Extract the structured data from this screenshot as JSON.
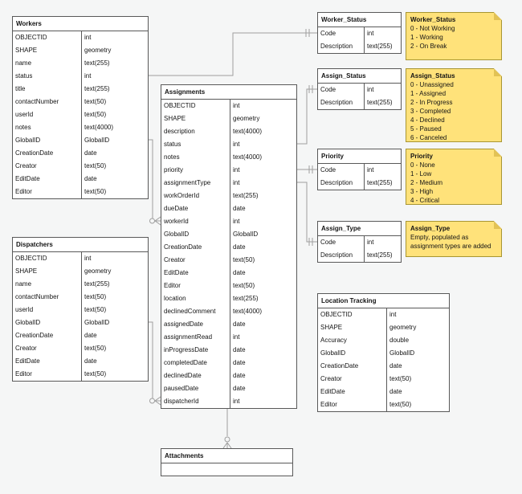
{
  "diagram": {
    "background_color": "#f5f6f6",
    "table_fill_color": "#ffffff",
    "table_border_color": "#595959",
    "connector_color": "#9e9e9e",
    "note_fill_color": "#ffe27a",
    "note_border_color": "#a89632",
    "note_fold_color": "#e2c255",
    "text_color": "#141414"
  },
  "tables": [
    {
      "id": "workers",
      "title": "Workers",
      "rows": [
        [
          "OBJECTID",
          "int"
        ],
        [
          "SHAPE",
          "geometry"
        ],
        [
          "name",
          "text(255)"
        ],
        [
          "status",
          "int"
        ],
        [
          "title",
          "text(255)"
        ],
        [
          "contactNumber",
          "text(50)"
        ],
        [
          "userId",
          "text(50)"
        ],
        [
          "notes",
          "text(4000)"
        ],
        [
          "GlobalID",
          "GlobalID"
        ],
        [
          "CreationDate",
          "date"
        ],
        [
          "Creator",
          "text(50)"
        ],
        [
          "EditDate",
          "date"
        ],
        [
          "Editor",
          "text(50)"
        ]
      ]
    },
    {
      "id": "dispatchers",
      "title": "Dispatchers",
      "rows": [
        [
          "OBJECTID",
          "int"
        ],
        [
          "SHAPE",
          "geometry"
        ],
        [
          "name",
          "text(255)"
        ],
        [
          "contactNumber",
          "text(50)"
        ],
        [
          "userId",
          "text(50)"
        ],
        [
          "GlobalID",
          "GlobalID"
        ],
        [
          "CreationDate",
          "date"
        ],
        [
          "Creator",
          "text(50)"
        ],
        [
          "EditDate",
          "date"
        ],
        [
          "Editor",
          "text(50)"
        ]
      ]
    },
    {
      "id": "assignments",
      "title": "Assignments",
      "rows": [
        [
          "OBJECTID",
          "int"
        ],
        [
          "SHAPE",
          "geometry"
        ],
        [
          "description",
          "text(4000)"
        ],
        [
          "status",
          "int"
        ],
        [
          "notes",
          "text(4000)"
        ],
        [
          "priority",
          "int"
        ],
        [
          "assignmentType",
          "int"
        ],
        [
          "workOrderId",
          "text(255)"
        ],
        [
          "dueDate",
          "date"
        ],
        [
          "workerId",
          "int"
        ],
        [
          "GlobalID",
          "GlobalID"
        ],
        [
          "CreationDate",
          "date"
        ],
        [
          "Creator",
          "text(50)"
        ],
        [
          "EditDate",
          "date"
        ],
        [
          "Editor",
          "text(50)"
        ],
        [
          "location",
          "text(255)"
        ],
        [
          "declinedComment",
          "text(4000)"
        ],
        [
          "assignedDate",
          "date"
        ],
        [
          "assignmentRead",
          "int"
        ],
        [
          "inProgressDate",
          "date"
        ],
        [
          "completedDate",
          "date"
        ],
        [
          "declinedDate",
          "date"
        ],
        [
          "pausedDate",
          "date"
        ],
        [
          "dispatcherId",
          "int"
        ]
      ]
    },
    {
      "id": "worker-status",
      "title": "Worker_Status",
      "rows": [
        [
          "Code",
          "int"
        ],
        [
          "Description",
          "text(255)"
        ]
      ]
    },
    {
      "id": "assign-status",
      "title": "Assign_Status",
      "rows": [
        [
          "Code",
          "int"
        ],
        [
          "Description",
          "text(255)"
        ]
      ]
    },
    {
      "id": "priority",
      "title": "Priority",
      "rows": [
        [
          "Code",
          "int"
        ],
        [
          "Description",
          "text(255)"
        ]
      ]
    },
    {
      "id": "assign-type",
      "title": "Assign_Type",
      "rows": [
        [
          "Code",
          "int"
        ],
        [
          "Description",
          "text(255)"
        ]
      ]
    },
    {
      "id": "location-tracking",
      "title": "Location Tracking",
      "rows": [
        [
          "OBJECTID",
          "int"
        ],
        [
          "SHAPE",
          "geometry"
        ],
        [
          "Accuracy",
          "double"
        ],
        [
          "GlobalID",
          "GlobalID"
        ],
        [
          "CreationDate",
          "date"
        ],
        [
          "Creator",
          "text(50)"
        ],
        [
          "EditDate",
          "date"
        ],
        [
          "Editor",
          "text(50)"
        ]
      ]
    },
    {
      "id": "attachments",
      "title": "Attachments",
      "rows": []
    }
  ],
  "notes": [
    {
      "id": "worker-status-note",
      "title": "Worker_Status",
      "lines": [
        "0 - Not Working",
        "1 - Working",
        "2 - On Break"
      ]
    },
    {
      "id": "assign-status-note",
      "title": "Assign_Status",
      "lines": [
        "0 - Unassigned",
        "1 - Assigned",
        "2 - In Progress",
        "3 - Completed",
        "4 - Declined",
        "5 - Paused",
        "6 - Canceled"
      ]
    },
    {
      "id": "priority-note",
      "title": "Priority",
      "lines": [
        "0 - None",
        "1 - Low",
        "2 - Medium",
        "3 - High",
        "4 - Critical"
      ]
    },
    {
      "id": "assign-type-note",
      "title": "Assign_Type",
      "lines": [
        "Empty, populated as assignment types are added"
      ]
    }
  ],
  "relationships": [
    {
      "from": "Workers.status",
      "to": "Worker_Status.Code"
    },
    {
      "from": "Assignments.status",
      "to": "Assign_Status.Code"
    },
    {
      "from": "Assignments.priority",
      "to": "Priority.Code"
    },
    {
      "from": "Assignments.assignmentType",
      "to": "Assign_Type.Code"
    },
    {
      "from": "Assignments.workerId",
      "to": "Workers.GlobalID"
    },
    {
      "from": "Assignments.dispatcherId",
      "to": "Dispatchers.GlobalID"
    },
    {
      "from": "Attachments",
      "to": "Assignments.GlobalID"
    }
  ]
}
